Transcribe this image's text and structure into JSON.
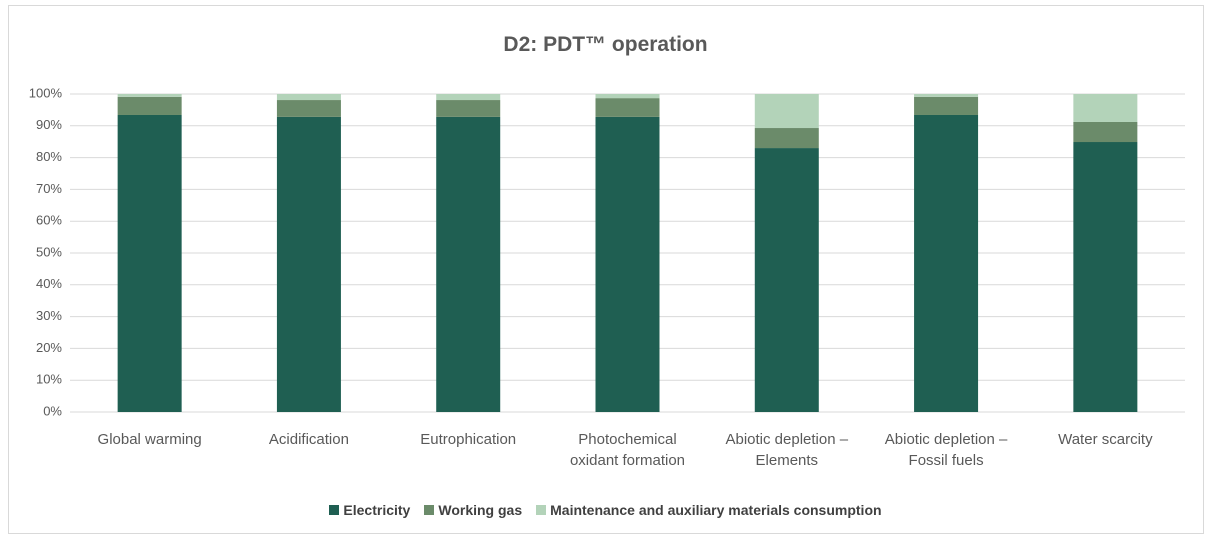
{
  "chart_data": {
    "type": "stacked_bar",
    "title": "D2: PDT™ operation",
    "categories": [
      "Global warming",
      "Acidification",
      "Eutrophication",
      "Photochemical oxidant formation",
      "Abiotic depletion – Elements",
      "Abiotic depletion – Fossil fuels",
      "Water scarcity"
    ],
    "series": [
      {
        "name": "Electricity",
        "color": "#1f5f52",
        "values": [
          93.4,
          92.8,
          92.8,
          92.8,
          83.0,
          93.4,
          84.9
        ]
      },
      {
        "name": "Working gas",
        "color": "#6b8b6a",
        "values": [
          5.7,
          5.3,
          5.3,
          5.9,
          6.3,
          5.7,
          6.3
        ]
      },
      {
        "name": "Maintenance and auxiliary materials consumption",
        "color": "#b3d3b9",
        "values": [
          0.9,
          1.9,
          1.9,
          1.3,
          10.7,
          0.9,
          8.8
        ]
      }
    ],
    "ylim": [
      0,
      100
    ],
    "yticks": [
      {
        "value": 0,
        "label": "0%"
      },
      {
        "value": 10,
        "label": "10%"
      },
      {
        "value": 20,
        "label": "20%"
      },
      {
        "value": 30,
        "label": "30%"
      },
      {
        "value": 40,
        "label": "40%"
      },
      {
        "value": 50,
        "label": "50%"
      },
      {
        "value": 60,
        "label": "60%"
      },
      {
        "value": 70,
        "label": "70%"
      },
      {
        "value": 80,
        "label": "80%"
      },
      {
        "value": 90,
        "label": "90%"
      },
      {
        "value": 100,
        "label": "100%"
      }
    ],
    "grid": true,
    "legend": "bottom"
  }
}
